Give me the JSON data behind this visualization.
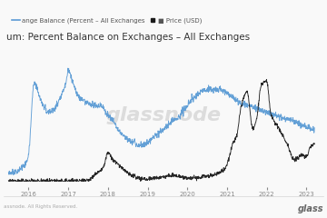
{
  "title": "um: Percent Balance on Exchanges – All Exchanges",
  "legend_blue": "ange Balance (Percent – All Exchanges",
  "legend_black": "■ Price (USD)",
  "x_ticks": [
    "2016",
    "2017",
    "2018",
    "2019",
    "2020",
    "2021",
    "2022",
    "2023"
  ],
  "x_tick_years": [
    2016,
    2017,
    2018,
    2019,
    2020,
    2021,
    2022,
    2023
  ],
  "watermark": "glassnode",
  "footer_left": "assnode. All Rights Reserved.",
  "footer_right": "glass",
  "bg_color": "#f9f9f9",
  "grid_color": "#e2e2e2",
  "blue_color": "#5b9bd5",
  "black_color": "#1a1a1a",
  "title_fontsize": 7.5,
  "legend_fontsize": 5.0,
  "tick_fontsize": 5,
  "footer_fontsize": 4,
  "xlim_left": 2015.45,
  "xlim_right": 2023.35
}
